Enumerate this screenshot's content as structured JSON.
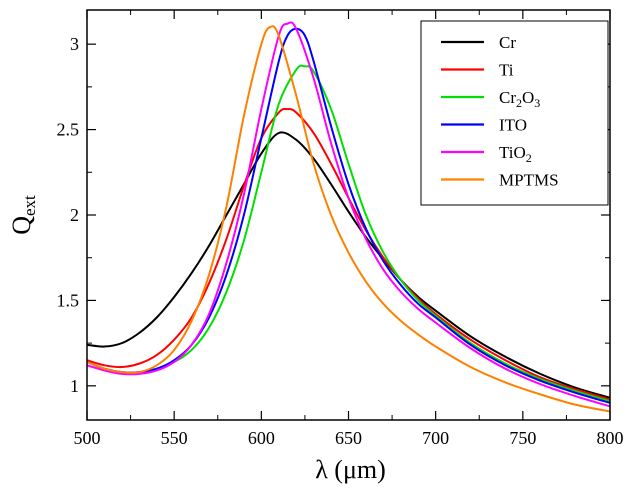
{
  "chart_data": {
    "type": "line",
    "title": "",
    "xlabel": "λ (μm)",
    "ylabel": {
      "main": "Q",
      "sub": "ext"
    },
    "xlim": [
      500,
      800
    ],
    "ylim": [
      0.8,
      3.2
    ],
    "xticks": [
      500,
      550,
      600,
      650,
      700,
      750,
      800
    ],
    "xtick_labels": [
      "500",
      "550",
      "600",
      "650",
      "700",
      "750",
      "800"
    ],
    "yticks": [
      1,
      1.5,
      2,
      2.5,
      3
    ],
    "ytick_labels": [
      "1",
      "1.5",
      "2",
      "2.5",
      "3"
    ],
    "grid": false,
    "legend_position": "top-right",
    "series": [
      {
        "name": "Cr",
        "label_main": "Cr",
        "label_sub1": "",
        "label_mid": "",
        "label_sub2": "",
        "color": "#000000",
        "x": [
          500,
          510,
          520,
          530,
          540,
          550,
          560,
          570,
          580,
          590,
          600,
          610,
          620,
          630,
          640,
          650,
          660,
          670,
          680,
          690,
          700,
          720,
          740,
          760,
          780,
          800
        ],
        "y": [
          1.24,
          1.23,
          1.25,
          1.31,
          1.4,
          1.52,
          1.66,
          1.82,
          2.0,
          2.18,
          2.36,
          2.48,
          2.44,
          2.33,
          2.18,
          2.02,
          1.87,
          1.74,
          1.62,
          1.52,
          1.44,
          1.29,
          1.17,
          1.07,
          0.99,
          0.93
        ]
      },
      {
        "name": "Ti",
        "label_main": "Ti",
        "label_sub1": "",
        "label_mid": "",
        "label_sub2": "",
        "color": "#ff0000",
        "x": [
          500,
          510,
          520,
          530,
          540,
          550,
          560,
          570,
          580,
          590,
          600,
          610,
          615,
          620,
          630,
          640,
          650,
          660,
          670,
          680,
          690,
          700,
          720,
          740,
          760,
          780,
          800
        ],
        "y": [
          1.15,
          1.12,
          1.11,
          1.13,
          1.18,
          1.27,
          1.4,
          1.6,
          1.86,
          2.17,
          2.45,
          2.6,
          2.62,
          2.6,
          2.48,
          2.3,
          2.1,
          1.91,
          1.75,
          1.62,
          1.51,
          1.42,
          1.27,
          1.15,
          1.05,
          0.98,
          0.92
        ]
      },
      {
        "name": "Cr2O3",
        "label_main": "Cr",
        "label_sub1": "2",
        "label_mid": "O",
        "label_sub2": "3",
        "color": "#00e000",
        "x": [
          500,
          510,
          520,
          530,
          540,
          550,
          560,
          570,
          580,
          590,
          600,
          610,
          620,
          625,
          630,
          640,
          650,
          660,
          670,
          680,
          690,
          700,
          720,
          740,
          760,
          780,
          800
        ],
        "y": [
          1.14,
          1.1,
          1.08,
          1.08,
          1.1,
          1.14,
          1.21,
          1.34,
          1.55,
          1.85,
          2.25,
          2.65,
          2.85,
          2.87,
          2.84,
          2.62,
          2.3,
          2.0,
          1.78,
          1.62,
          1.5,
          1.41,
          1.25,
          1.13,
          1.04,
          0.97,
          0.91
        ]
      },
      {
        "name": "ITO",
        "label_main": "ITO",
        "label_sub1": "",
        "label_mid": "",
        "label_sub2": "",
        "color": "#0000ff",
        "x": [
          500,
          510,
          520,
          530,
          540,
          550,
          560,
          570,
          580,
          590,
          600,
          610,
          615,
          620,
          625,
          630,
          640,
          650,
          660,
          670,
          680,
          690,
          700,
          720,
          740,
          760,
          780,
          800
        ],
        "y": [
          1.14,
          1.1,
          1.08,
          1.08,
          1.1,
          1.15,
          1.24,
          1.4,
          1.65,
          2.0,
          2.45,
          2.9,
          3.05,
          3.09,
          3.05,
          2.9,
          2.52,
          2.18,
          1.92,
          1.73,
          1.59,
          1.48,
          1.4,
          1.24,
          1.12,
          1.03,
          0.96,
          0.9
        ]
      },
      {
        "name": "TiO2",
        "label_main": "TiO",
        "label_sub1": "",
        "label_mid": "",
        "label_sub2": "2",
        "color": "#ff00ff",
        "x": [
          500,
          510,
          520,
          530,
          540,
          550,
          560,
          570,
          580,
          590,
          600,
          610,
          615,
          620,
          630,
          640,
          650,
          660,
          670,
          680,
          690,
          700,
          720,
          740,
          760,
          780,
          800
        ],
        "y": [
          1.12,
          1.09,
          1.07,
          1.07,
          1.09,
          1.14,
          1.24,
          1.42,
          1.72,
          2.12,
          2.62,
          3.05,
          3.12,
          3.09,
          2.8,
          2.42,
          2.1,
          1.86,
          1.68,
          1.55,
          1.45,
          1.37,
          1.22,
          1.1,
          1.01,
          0.94,
          0.88
        ]
      },
      {
        "name": "MPTMS",
        "label_main": "MPTMS",
        "label_sub1": "",
        "label_mid": "",
        "label_sub2": "",
        "color": "#ff8000",
        "x": [
          500,
          510,
          520,
          530,
          540,
          550,
          560,
          570,
          580,
          590,
          600,
          605,
          610,
          620,
          630,
          640,
          650,
          660,
          670,
          680,
          690,
          700,
          720,
          740,
          760,
          780,
          800
        ],
        "y": [
          1.14,
          1.1,
          1.08,
          1.08,
          1.12,
          1.21,
          1.38,
          1.65,
          2.05,
          2.58,
          3.0,
          3.1,
          3.05,
          2.7,
          2.3,
          2.0,
          1.78,
          1.61,
          1.48,
          1.38,
          1.3,
          1.23,
          1.11,
          1.02,
          0.95,
          0.89,
          0.85
        ]
      }
    ]
  }
}
